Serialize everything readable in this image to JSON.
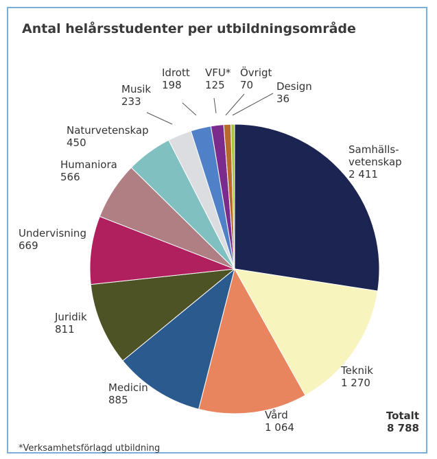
{
  "chart_data": {
    "type": "pie",
    "title": "Antal helårsstudenter per utbildningsområde",
    "categories": [
      "Samhälls-\nvetenskap",
      "Teknik",
      "Vård",
      "Medicin",
      "Juridik",
      "Undervisning",
      "Humaniora",
      "Naturvetenskap",
      "Musik",
      "Idrott",
      "VFU*",
      "Övrigt",
      "Design"
    ],
    "values": [
      2411,
      1270,
      1064,
      885,
      811,
      669,
      566,
      450,
      233,
      198,
      125,
      70,
      36
    ],
    "value_labels": [
      "2 411",
      "1 270",
      "1 064",
      "885",
      "811",
      "669",
      "566",
      "450",
      "233",
      "198",
      "125",
      "70",
      "36"
    ],
    "colors": [
      "#1c2452",
      "#f7f4be",
      "#e8855f",
      "#2b5a8f",
      "#4e5325",
      "#b01f5e",
      "#b07f83",
      "#80c0c1",
      "#dcdde1",
      "#4f80c8",
      "#7a2b8b",
      "#b8692c",
      "#a9c33d"
    ],
    "total_label": "Totalt",
    "total_value": "8 788",
    "footnote": "*Verksamhetsförlagd utbildning"
  }
}
